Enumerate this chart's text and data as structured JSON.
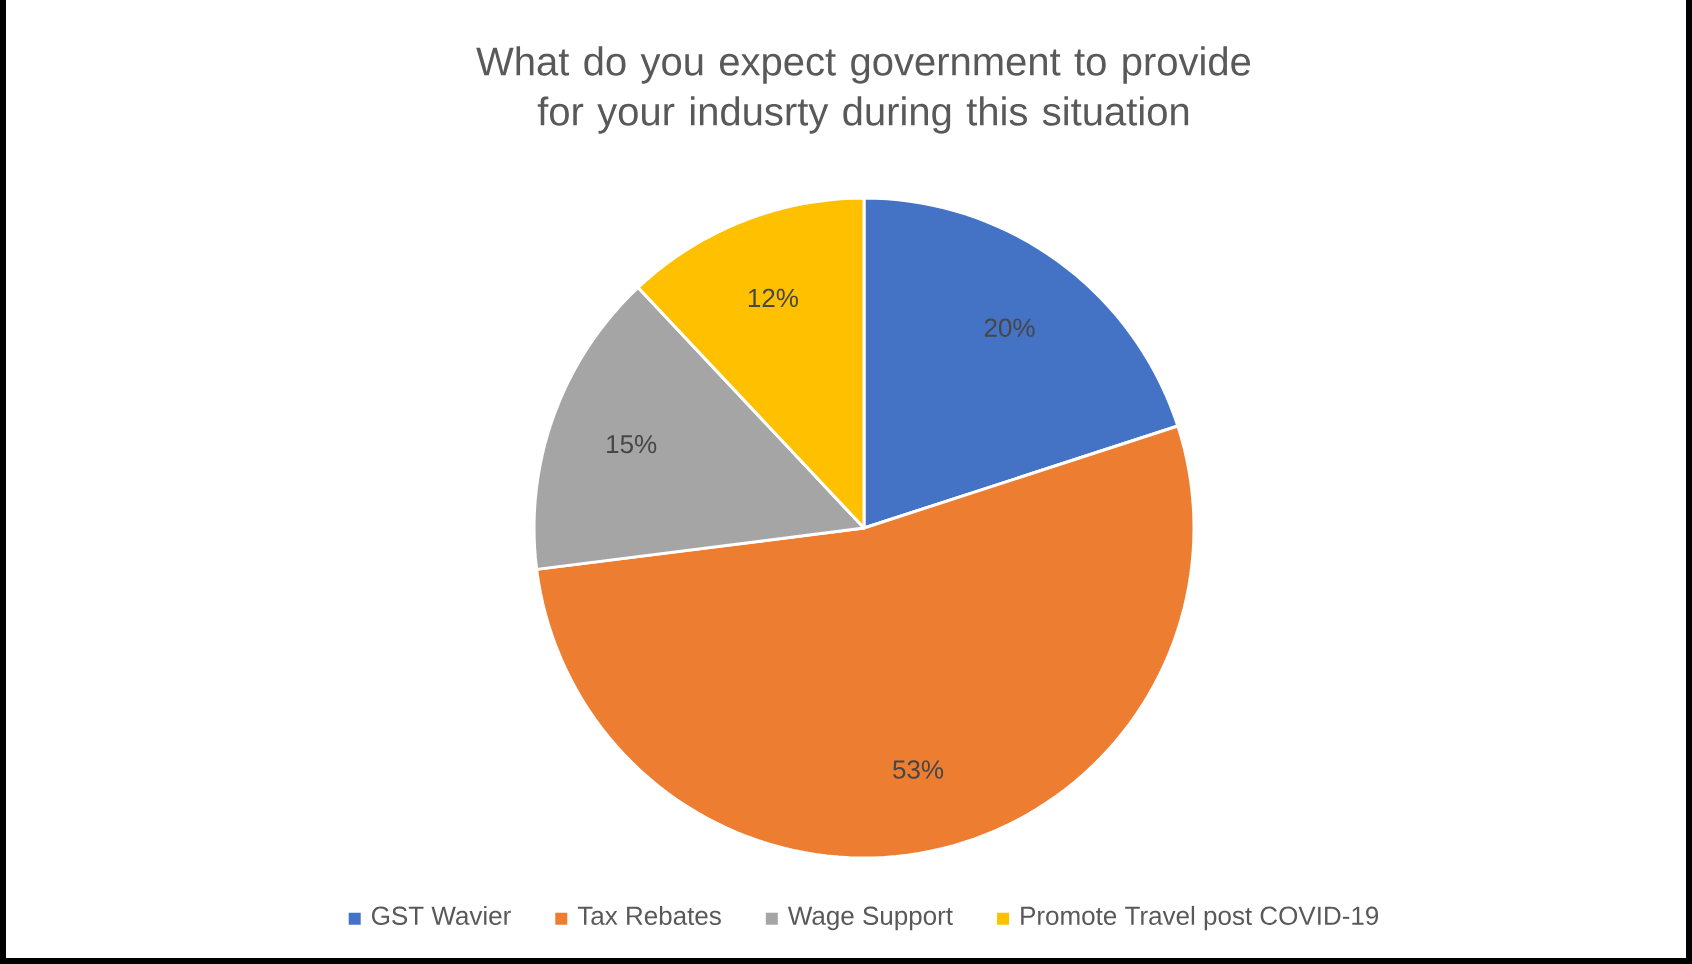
{
  "chart_data": {
    "type": "pie",
    "title": "What do you expect government to provide for your indusrty during this situation",
    "categories": [
      "GST Wavier",
      "Tax Rebates",
      "Wage Support",
      "Promote Travel post COVID-19"
    ],
    "values": [
      20,
      53,
      15,
      12
    ],
    "value_labels": [
      "20%",
      "53%",
      "15%",
      "12%"
    ],
    "colors": [
      "#4472c4",
      "#ed7d31",
      "#a5a5a5",
      "#ffc000"
    ],
    "legend": "bottom"
  }
}
